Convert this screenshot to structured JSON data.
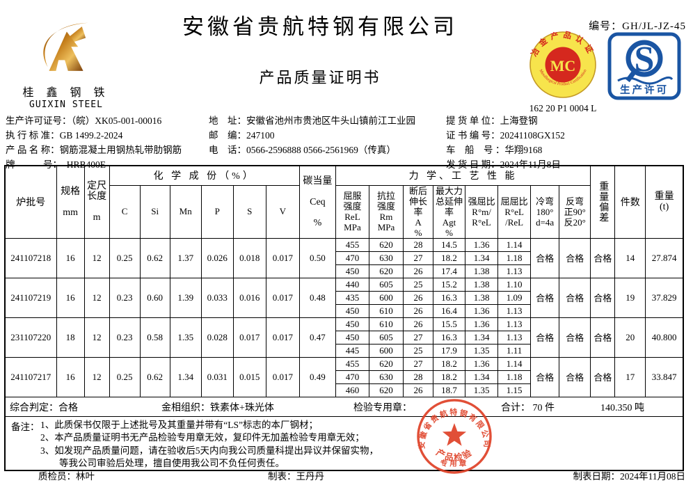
{
  "header": {
    "serial_label": "编号：",
    "serial": "GH/JL-JZ-45",
    "company": "安徽省贵航特钢有限公司",
    "doc_title": "产品质量证明书",
    "logo_cn": "桂 鑫 钢 铁",
    "logo_en": "GUIXIN  STEEL",
    "mc_top": "冶金产品认证",
    "mc_bottom": "Metallurgical Product Certification",
    "mc_center": "MC",
    "mc_code": "162 20 P1 0004 L",
    "qs_letter": "S",
    "qs_label": "生产许可"
  },
  "info": {
    "left": [
      {
        "label": "生产许可证号：",
        "value": "（皖）XK05-001-00016"
      },
      {
        "label": "执 行 标 准：",
        "value": "GB 1499.2-2024"
      },
      {
        "label": "产 品 名 称：",
        "value": "钢筋混凝土用钢热轧带肋钢筋"
      },
      {
        "label": "牌　　　号：",
        "value": "　HRB400E"
      }
    ],
    "middle": [
      {
        "label": "地　址：",
        "value": "安徽省池州市贵池区牛头山镇前江工业园"
      },
      {
        "label": "邮　编：",
        "value": "247100"
      },
      {
        "label": "电　话：",
        "value": "0566-2596888  0566-2561969（传真）"
      }
    ],
    "right": [
      {
        "label": "提 货 单 位：",
        "value": "上海登钢"
      },
      {
        "label": "证 书 编 号：",
        "value": "20241108GX152"
      },
      {
        "label": "车　船　号 ：",
        "value": "华翔9168"
      },
      {
        "label": "发 货 日 期：",
        "value": "2024年11月8日"
      }
    ]
  },
  "table": {
    "h": {
      "batch": "炉批号",
      "spec": "规格\n\nmm",
      "length": "定尺\n长度\n\nm",
      "chem_group": "化 学 成 份（%）",
      "chem_cols": [
        "C",
        "Si",
        "Mn",
        "P",
        "S",
        "V"
      ],
      "ceq": "碳当量\n\nCeq\n\n%",
      "mech_group": "力 学、工 艺 性 能",
      "mech_cols": [
        "屈服\n强度\nReL\nMPa",
        "抗拉\n强度\nRm\nMPa",
        "断后\n伸长\n率\nA\n%",
        "最大力\n总延伸\n率\nAgt\n%",
        "强屈比\nR°m/\nR°eL",
        "屈屈比\nR°eL\n/ReL",
        "冷弯\n180°\nd=4a",
        "反弯\n正90°\n反20°"
      ],
      "weight_dev": "重量偏差",
      "pieces": "件数",
      "weight": "重量\n(t)"
    },
    "rows": [
      {
        "batch": "241107218",
        "spec": "16",
        "length": "12",
        "chem": [
          "0.25",
          "0.62",
          "1.37",
          "0.026",
          "0.018",
          "0.017"
        ],
        "ceq": "0.50",
        "mech": [
          [
            "455",
            "620",
            "28",
            "14.5",
            "1.36",
            "1.14"
          ],
          [
            "470",
            "630",
            "27",
            "18.2",
            "1.34",
            "1.18"
          ],
          [
            "450",
            "620",
            "26",
            "17.4",
            "1.38",
            "1.13"
          ]
        ],
        "cold_bend": "合格",
        "reverse_bend": "合格",
        "weight_dev": "合格",
        "pieces": "14",
        "weight": "27.874"
      },
      {
        "batch": "241107219",
        "spec": "16",
        "length": "12",
        "chem": [
          "0.23",
          "0.60",
          "1.39",
          "0.033",
          "0.016",
          "0.017"
        ],
        "ceq": "0.48",
        "mech": [
          [
            "440",
            "605",
            "25",
            "15.2",
            "1.38",
            "1.10"
          ],
          [
            "435",
            "600",
            "26",
            "16.3",
            "1.38",
            "1.09"
          ],
          [
            "450",
            "610",
            "26",
            "16.4",
            "1.36",
            "1.13"
          ]
        ],
        "cold_bend": "合格",
        "reverse_bend": "合格",
        "weight_dev": "合格",
        "pieces": "19",
        "weight": "37.829"
      },
      {
        "batch": "231107220",
        "spec": "18",
        "length": "12",
        "chem": [
          "0.23",
          "0.58",
          "1.35",
          "0.028",
          "0.017",
          "0.017"
        ],
        "ceq": "0.47",
        "mech": [
          [
            "450",
            "610",
            "26",
            "15.5",
            "1.36",
            "1.13"
          ],
          [
            "450",
            "605",
            "27",
            "16.3",
            "1.34",
            "1.13"
          ],
          [
            "445",
            "600",
            "25",
            "17.9",
            "1.35",
            "1.11"
          ]
        ],
        "cold_bend": "合格",
        "reverse_bend": "合格",
        "weight_dev": "合格",
        "pieces": "20",
        "weight": "40.800"
      },
      {
        "batch": "241107217",
        "spec": "16",
        "length": "12",
        "chem": [
          "0.25",
          "0.62",
          "1.34",
          "0.031",
          "0.015",
          "0.017"
        ],
        "ceq": "0.49",
        "mech": [
          [
            "455",
            "620",
            "27",
            "18.2",
            "1.36",
            "1.14"
          ],
          [
            "470",
            "630",
            "28",
            "18.2",
            "1.34",
            "1.18"
          ],
          [
            "460",
            "620",
            "26",
            "18.7",
            "1.35",
            "1.15"
          ]
        ],
        "cold_bend": "合格",
        "reverse_bend": "合格",
        "weight_dev": "合格",
        "pieces": "17",
        "weight": "33.847"
      }
    ],
    "summary": {
      "judge": "综合判定：合格",
      "structure": "金相组织：铁素体+珠光体",
      "seal_label": "检验专用章：",
      "total": "合计：  70 件",
      "total_weight": "140.350   吨"
    },
    "notes_label": "备注：",
    "notes": [
      "1、此质保书仅限于上述批号及其重量并带有“LS”标志的本厂钢材；",
      "2、本产品质量证明书无产品检验专用章无效，复印件无加盖检验专用章无效；",
      "3、如发现产品质量问题，请在验收后5天内向我公司质量科提出异议并保留实物，",
      "　　等我公司审验后处理，擅自使用我公司不负任何责任。"
    ]
  },
  "stamp": {
    "company": "安徽省贵航特钢有限公司",
    "line1": "产品检验",
    "line2": "专用章",
    "color": "#df4228"
  },
  "footer": {
    "inspector": "质检员：林叶",
    "preparer": "制表：王丹丹",
    "date": "制表日期：2024年11月08日"
  }
}
